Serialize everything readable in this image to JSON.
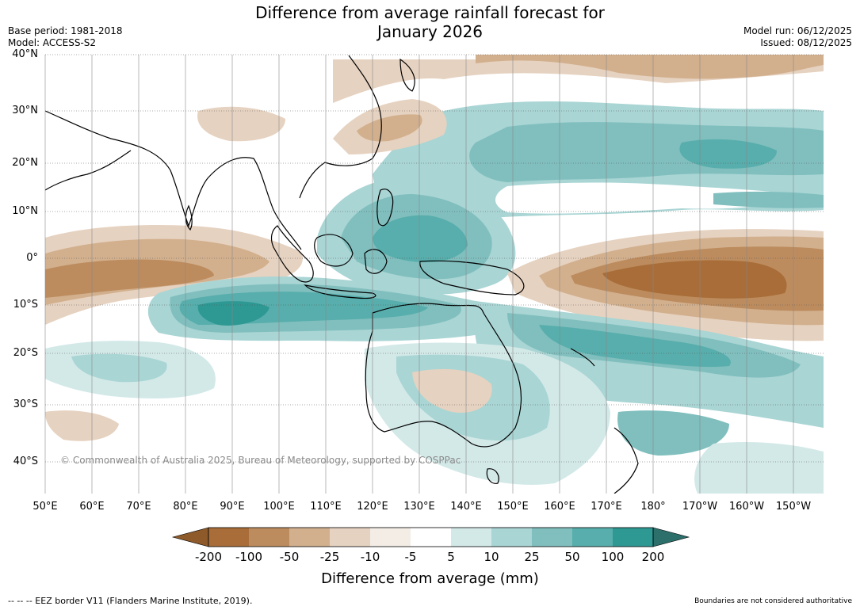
{
  "title_line1": "Difference from average rainfall forecast for",
  "title_line2": "January 2026",
  "base_period": "Base period: 1981-2018",
  "model": "Model: ACCESS-S2",
  "model_run": "Model run: 06/12/2025",
  "issued": "Issued: 08/12/2025",
  "lat_labels": [
    "40°N",
    "30°N",
    "20°N",
    "10°N",
    "0°",
    "10°S",
    "20°S",
    "30°S",
    "40°S"
  ],
  "lon_labels": [
    "50°E",
    "60°E",
    "70°E",
    "80°E",
    "90°E",
    "100°E",
    "110°E",
    "120°E",
    "130°E",
    "140°E",
    "150°E",
    "160°E",
    "170°E",
    "180°",
    "170°W",
    "160°W",
    "150°W"
  ],
  "copyright": "© Commonwealth of Australia 2025, Bureau of Meteorology, supported by COSPPac",
  "colorbar": {
    "title": "Difference from average (mm)",
    "ticks": [
      "-200",
      "-100",
      "-50",
      "-25",
      "-10",
      "-5",
      "5",
      "10",
      "25",
      "50",
      "100",
      "200"
    ],
    "colors": {
      "below_-200": "#8e5a2a",
      "-200_-100": "#a86d38",
      "-100_-50": "#bd8c5e",
      "-50_-25": "#d2b08e",
      "-25_-10": "#e6d2c0",
      "-10_-5": "#f3ede6",
      "-5_5": "#ffffff",
      "5_10": "#d3e9e8",
      "10_25": "#a9d5d4",
      "25_50": "#80bfbe",
      "50_100": "#57aeac",
      "100_200": "#2e9893",
      "above_200": "#2c6f6b"
    }
  },
  "footer_left": "--  --  -- EEZ border V11 (Flanders Marine Institute, 2019).",
  "footer_right": "Boundaries are not considered authoritative"
}
